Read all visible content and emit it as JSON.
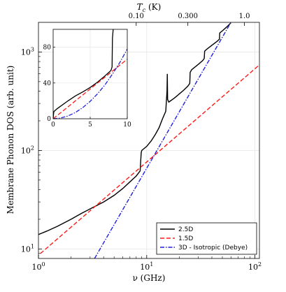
{
  "chart_data": {
    "type": "line",
    "xlabel": "ν (GHz)",
    "ylabel": "Membrane Phonon DOS (arb. unit)",
    "top_axis_label": "Tc (K)",
    "top_axis_label_main": "T",
    "top_axis_label_sub": "c",
    "top_axis_label_unit": " (K)",
    "x_scale": "log",
    "y_scale": "log",
    "xlim": [
      1,
      110
    ],
    "ylim": [
      8,
      2000
    ],
    "x_ticks": [
      {
        "value": 1,
        "base": "10",
        "exp": "0"
      },
      {
        "value": 10,
        "base": "10",
        "exp": "1"
      },
      {
        "value": 100,
        "base": "10",
        "exp": "2"
      }
    ],
    "y_ticks": [
      {
        "value": 10,
        "base": "10",
        "exp": "1"
      },
      {
        "value": 100,
        "base": "10",
        "exp": "2"
      },
      {
        "value": 1000,
        "base": "10",
        "exp": "3"
      }
    ],
    "top_ticks": [
      {
        "label": "0.10",
        "freq_ghz": 8.0
      },
      {
        "label": "0.300",
        "freq_ghz": 24.0
      },
      {
        "label": "1.0",
        "freq_ghz": 80.0
      }
    ],
    "grid": true,
    "legend_position": "bottom-right",
    "series": [
      {
        "name": "2.5D",
        "color": "#000000",
        "dash": "solid",
        "points": [
          [
            1,
            14
          ],
          [
            1.2,
            15.2
          ],
          [
            1.5,
            17
          ],
          [
            2,
            20
          ],
          [
            2.5,
            23
          ],
          [
            3,
            25.5
          ],
          [
            4,
            30
          ],
          [
            5,
            35
          ],
          [
            6,
            41
          ],
          [
            7,
            48
          ],
          [
            8,
            55
          ],
          [
            8.5,
            60
          ],
          [
            8.7,
            62
          ],
          [
            8.8,
            78
          ],
          [
            8.9,
            95
          ],
          [
            9,
            100
          ],
          [
            10,
            110
          ],
          [
            11,
            125
          ],
          [
            12,
            145
          ],
          [
            13,
            170
          ],
          [
            14,
            210
          ],
          [
            15,
            250
          ],
          [
            15.4,
            400
          ],
          [
            15.5,
            600
          ],
          [
            15.6,
            330
          ],
          [
            16,
            310
          ],
          [
            18,
            340
          ],
          [
            20,
            375
          ],
          [
            22,
            410
          ],
          [
            24,
            450
          ],
          [
            25,
            480
          ],
          [
            25.2,
            620
          ],
          [
            26,
            660
          ],
          [
            30,
            750
          ],
          [
            33,
            820
          ],
          [
            34,
            860
          ],
          [
            34.3,
            1020
          ],
          [
            36,
            1070
          ],
          [
            40,
            1170
          ],
          [
            45,
            1290
          ],
          [
            47,
            1350
          ],
          [
            47.3,
            1560
          ],
          [
            50,
            1640
          ],
          [
            55,
            1800
          ],
          [
            60,
            1980
          ]
        ]
      },
      {
        "name": "1.5D",
        "color": "#ff1a1a",
        "dash": "dashed",
        "points": [
          [
            0.85,
            7.4
          ],
          [
            110,
            740
          ]
        ]
      },
      {
        "name": "3D - Isotropic (Debye)",
        "color": "#1f1fe0",
        "dash": "dashdot",
        "points": [
          [
            3.3,
            8
          ],
          [
            60,
            2000
          ]
        ]
      }
    ],
    "inset": {
      "xlim": [
        0,
        10
      ],
      "ylim": [
        0,
        100
      ],
      "x_ticks": [
        0,
        5,
        10
      ],
      "y_ticks": [
        0,
        40,
        80
      ],
      "series": [
        {
          "name": "2.5D",
          "color": "#000000",
          "dash": "solid",
          "points": [
            [
              0,
              0
            ],
            [
              0.05,
              5
            ],
            [
              0.1,
              8
            ],
            [
              0.5,
              11
            ],
            [
              1,
              14
            ],
            [
              2,
              20
            ],
            [
              3,
              25.5
            ],
            [
              4,
              30
            ],
            [
              5,
              35
            ],
            [
              6,
              41
            ],
            [
              7,
              48
            ],
            [
              7.8,
              54
            ],
            [
              7.95,
              58
            ],
            [
              8.0,
              90
            ],
            [
              8.1,
              100
            ]
          ]
        },
        {
          "name": "1.5D",
          "color": "#ff1a1a",
          "dash": "dashed",
          "points": [
            [
              0,
              0
            ],
            [
              2,
              13.3
            ],
            [
              4,
              26.7
            ],
            [
              6,
              40
            ],
            [
              8,
              53.3
            ],
            [
              10,
              66.7
            ]
          ]
        },
        {
          "name": "3D - Isotropic (Debye)",
          "color": "#1f1fe0",
          "dash": "dashdot",
          "points": [
            [
              0,
              0
            ],
            [
              1,
              0.78
            ],
            [
              2,
              3.1
            ],
            [
              3,
              7
            ],
            [
              4,
              12.5
            ],
            [
              5,
              19.5
            ],
            [
              6,
              28
            ],
            [
              7,
              38
            ],
            [
              8,
              50
            ],
            [
              9,
              63
            ],
            [
              10,
              78
            ]
          ]
        }
      ]
    }
  }
}
